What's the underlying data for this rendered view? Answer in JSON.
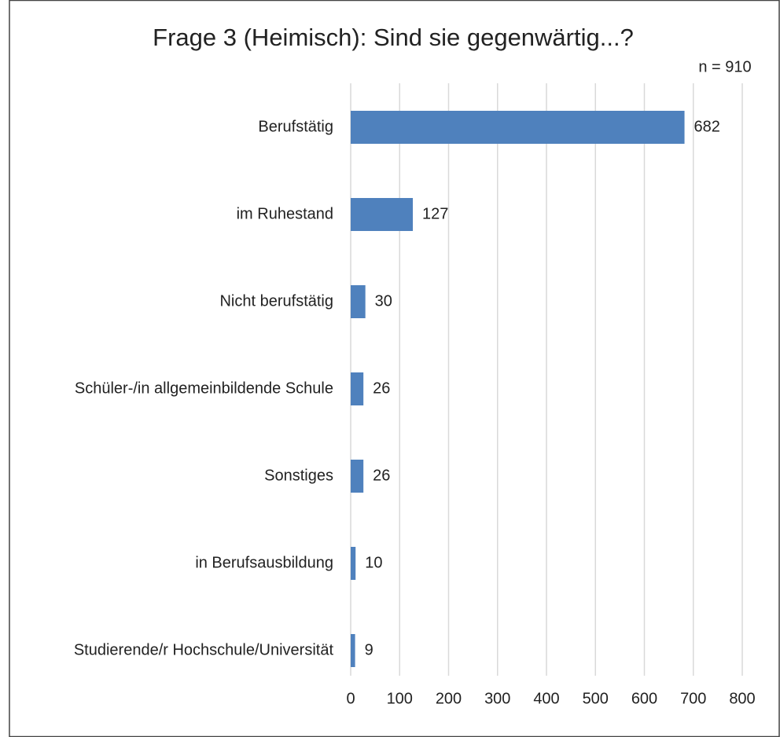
{
  "chart_data": {
    "type": "bar",
    "orientation": "horizontal",
    "title": "Frage 3 (Heimisch): Sind sie gegenwärtig...?",
    "annotation": "n = 910",
    "categories": [
      "Berufstätig",
      "im Ruhestand",
      "Nicht berufstätig",
      "Schüler-/in allgemeinbildende Schule",
      "Sonstiges",
      "in Berufsausbildung",
      "Studierende/r Hochschule/Universität"
    ],
    "values": [
      682,
      127,
      30,
      26,
      26,
      10,
      9
    ],
    "color": "#4f81bd",
    "xlim": [
      0,
      800
    ],
    "xticks": [
      0,
      100,
      200,
      300,
      400,
      500,
      600,
      700,
      800
    ],
    "grid": true
  }
}
